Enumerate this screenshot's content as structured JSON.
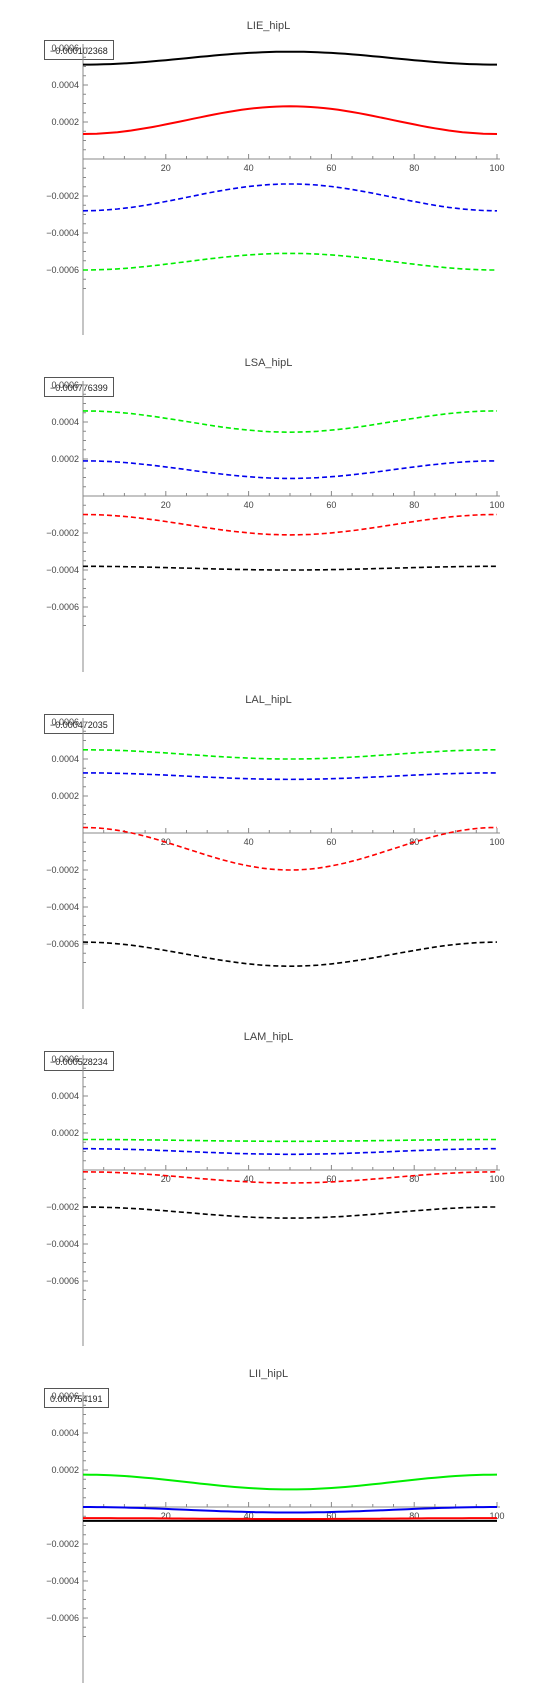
{
  "chart_data": [
    {
      "type": "line",
      "title": "LIE_hipL",
      "box_value": "−0.000102368",
      "x_ticks": [
        "20",
        "40",
        "60",
        "80",
        "100"
      ],
      "y_ticks": [
        "0.0006",
        "0.0004",
        "0.0002",
        "−0.0002",
        "−0.0004",
        "−0.0006"
      ],
      "xlim": [
        0,
        100
      ],
      "ylim": [
        -0.00075,
        0.00065
      ],
      "series": [
        {
          "color": "#000000",
          "style": "solid",
          "x": [
            0,
            25,
            50,
            75,
            100
          ],
          "y": [
            0.00051,
            0.000555,
            0.00058,
            0.000555,
            0.00051
          ]
        },
        {
          "color": "#ff0000",
          "style": "solid",
          "x": [
            0,
            25,
            50,
            75,
            100
          ],
          "y": [
            0.000135,
            0.00021,
            0.000285,
            0.00021,
            0.000135
          ]
        },
        {
          "color": "#0000ee",
          "style": "dashed",
          "x": [
            0,
            25,
            50,
            75,
            100
          ],
          "y": [
            -0.00028,
            -0.00021,
            -0.000135,
            -0.00021,
            -0.00028
          ]
        },
        {
          "color": "#00ee00",
          "style": "dashed",
          "x": [
            0,
            25,
            50,
            75,
            100
          ],
          "y": [
            -0.0006,
            -0.000555,
            -0.00051,
            -0.000555,
            -0.0006
          ]
        }
      ]
    },
    {
      "type": "line",
      "title": "LSA_hipL",
      "box_value": "−0.000776399",
      "x_ticks": [
        "20",
        "40",
        "60",
        "80",
        "100"
      ],
      "y_ticks": [
        "0.0006",
        "0.0004",
        "0.0002",
        "−0.0002",
        "−0.0004",
        "−0.0006"
      ],
      "xlim": [
        0,
        100
      ],
      "ylim": [
        -0.00075,
        0.00065
      ],
      "series": [
        {
          "color": "#00ee00",
          "style": "dashed",
          "x": [
            0,
            25,
            50,
            75,
            100
          ],
          "y": [
            0.00046,
            0.0004,
            0.000345,
            0.0004,
            0.00046
          ]
        },
        {
          "color": "#0000ee",
          "style": "dashed",
          "x": [
            0,
            25,
            50,
            75,
            100
          ],
          "y": [
            0.00019,
            0.00014,
            9.5e-05,
            0.00014,
            0.00019
          ]
        },
        {
          "color": "#ff0000",
          "style": "dashed",
          "x": [
            0,
            25,
            50,
            75,
            100
          ],
          "y": [
            -0.0001,
            -0.000155,
            -0.00021,
            -0.000155,
            -0.0001
          ]
        },
        {
          "color": "#000000",
          "style": "dashed",
          "x": [
            0,
            25,
            50,
            75,
            100
          ],
          "y": [
            -0.00038,
            -0.000395,
            -0.0004,
            -0.000395,
            -0.00038
          ]
        }
      ]
    },
    {
      "type": "line",
      "title": "LAL_hipL",
      "box_value": "−0.000472035",
      "x_ticks": [
        "20",
        "40",
        "60",
        "80",
        "100"
      ],
      "y_ticks": [
        "0.0006",
        "0.0004",
        "0.0002",
        "−0.0002",
        "−0.0004",
        "−0.0006"
      ],
      "xlim": [
        0,
        100
      ],
      "ylim": [
        -0.00075,
        0.00065
      ],
      "series": [
        {
          "color": "#00ee00",
          "style": "dashed",
          "x": [
            0,
            25,
            50,
            75,
            100
          ],
          "y": [
            0.00045,
            0.000425,
            0.0004,
            0.000425,
            0.00045
          ]
        },
        {
          "color": "#0000ee",
          "style": "dashed",
          "x": [
            0,
            25,
            50,
            75,
            100
          ],
          "y": [
            0.000325,
            0.00031,
            0.00029,
            0.00031,
            0.000325
          ]
        },
        {
          "color": "#ff0000",
          "style": "dashed",
          "x": [
            0,
            25,
            50,
            75,
            100
          ],
          "y": [
            3e-05,
            -8.5e-05,
            -0.0002,
            -8.5e-05,
            3e-05
          ]
        },
        {
          "color": "#000000",
          "style": "dashed",
          "x": [
            0,
            25,
            50,
            75,
            100
          ],
          "y": [
            -0.00059,
            -0.000655,
            -0.00072,
            -0.000655,
            -0.00059
          ]
        }
      ]
    },
    {
      "type": "line",
      "title": "LAM_hipL",
      "box_value": "−0.000528234",
      "x_ticks": [
        "20",
        "40",
        "60",
        "80",
        "100"
      ],
      "y_ticks": [
        "0.0006",
        "0.0004",
        "0.0002",
        "−0.0002",
        "−0.0004",
        "−0.0006"
      ],
      "xlim": [
        0,
        100
      ],
      "ylim": [
        -0.00075,
        0.00065
      ],
      "series": [
        {
          "color": "#00ee00",
          "style": "dashed",
          "x": [
            0,
            25,
            50,
            75,
            100
          ],
          "y": [
            0.000165,
            0.00016,
            0.000155,
            0.00016,
            0.000165
          ]
        },
        {
          "color": "#0000ee",
          "style": "dashed",
          "x": [
            0,
            25,
            50,
            75,
            100
          ],
          "y": [
            0.000115,
            0.0001,
            8.5e-05,
            0.0001,
            0.000115
          ]
        },
        {
          "color": "#ff0000",
          "style": "dashed",
          "x": [
            0,
            25,
            50,
            75,
            100
          ],
          "y": [
            -1e-05,
            -4e-05,
            -7e-05,
            -4e-05,
            -1e-05
          ]
        },
        {
          "color": "#000000",
          "style": "dashed",
          "x": [
            0,
            25,
            50,
            75,
            100
          ],
          "y": [
            -0.0002,
            -0.00023,
            -0.00026,
            -0.00023,
            -0.0002
          ]
        }
      ]
    },
    {
      "type": "line",
      "title": "LII_hipL",
      "box_value": "0.000754191",
      "x_ticks": [
        "20",
        "40",
        "60",
        "80",
        "100"
      ],
      "y_ticks": [
        "0.0006",
        "0.0004",
        "0.0002",
        "−0.0002",
        "−0.0004",
        "−0.0006"
      ],
      "xlim": [
        0,
        100
      ],
      "ylim": [
        -0.00075,
        0.00065
      ],
      "series": [
        {
          "color": "#00ee00",
          "style": "solid",
          "x": [
            0,
            25,
            50,
            75,
            100
          ],
          "y": [
            0.000175,
            0.000135,
            9.5e-05,
            0.000135,
            0.000175
          ]
        },
        {
          "color": "#0000ee",
          "style": "solid",
          "x": [
            0,
            25,
            50,
            75,
            100
          ],
          "y": [
            0.0,
            -1e-05,
            -3e-05,
            -1e-05,
            0.0
          ]
        },
        {
          "color": "#ff0000",
          "style": "solid",
          "x": [
            0,
            25,
            50,
            75,
            100
          ],
          "y": [
            -6e-05,
            -6.2e-05,
            -6.5e-05,
            -6.2e-05,
            -6e-05
          ]
        },
        {
          "color": "#000000",
          "style": "solid",
          "x": [
            0,
            25,
            50,
            75,
            100
          ],
          "y": [
            -7.5e-05,
            -7.5e-05,
            -7.5e-05,
            -7.5e-05,
            -7.5e-05
          ]
        }
      ]
    }
  ]
}
